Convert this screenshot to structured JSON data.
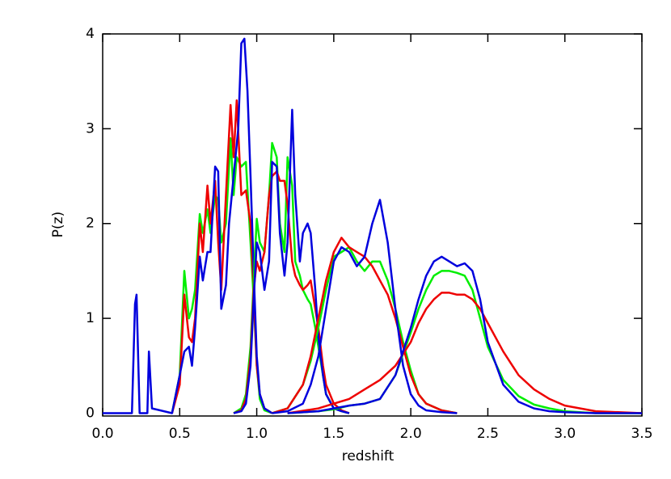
{
  "chart_data": {
    "type": "line",
    "x_label": "redshift",
    "y_label": "P(z)",
    "xlim": [
      0,
      3.5
    ],
    "ylim": [
      -0.03,
      4
    ],
    "xticks": [
      {
        "value": 0,
        "label": "0.0"
      },
      {
        "value": 0.5,
        "label": "0.5"
      },
      {
        "value": 1,
        "label": "1.0"
      },
      {
        "value": 1.5,
        "label": "1.5"
      },
      {
        "value": 2,
        "label": "2.0"
      },
      {
        "value": 2.5,
        "label": "2.5"
      },
      {
        "value": 3,
        "label": "3.0"
      },
      {
        "value": 3.5,
        "label": "3.5"
      }
    ],
    "yticks": [
      0,
      1,
      2,
      3,
      4
    ],
    "series": [
      {
        "color": "#00ee00",
        "x": [
          0.45,
          0.5,
          0.53,
          0.56,
          0.58,
          0.6,
          0.63,
          0.65,
          0.68,
          0.7,
          0.73,
          0.75,
          0.77,
          0.8,
          0.83,
          0.85,
          0.87,
          0.9,
          0.93,
          0.96,
          0.98,
          1.0,
          1.02,
          1.05,
          1.1
        ],
        "values": [
          0,
          0.4,
          1.5,
          1.0,
          1.1,
          1.3,
          2.1,
          1.9,
          2.15,
          1.9,
          2.3,
          2.25,
          1.8,
          2.0,
          2.9,
          2.3,
          2.7,
          2.6,
          2.65,
          1.8,
          1.2,
          0.5,
          0.15,
          0.03,
          0
        ]
      },
      {
        "color": "#ee0000",
        "x": [
          0.45,
          0.5,
          0.53,
          0.56,
          0.58,
          0.6,
          0.63,
          0.65,
          0.68,
          0.7,
          0.73,
          0.75,
          0.77,
          0.8,
          0.83,
          0.85,
          0.87,
          0.9,
          0.93,
          0.96,
          0.98,
          1.0,
          1.02,
          1.05,
          1.1
        ],
        "values": [
          0,
          0.3,
          1.25,
          0.8,
          0.75,
          1.0,
          2.0,
          1.7,
          2.4,
          2.0,
          2.45,
          1.8,
          1.3,
          2.3,
          3.25,
          2.7,
          3.3,
          2.3,
          2.35,
          2.0,
          1.3,
          0.5,
          0.2,
          0.05,
          0
        ]
      },
      {
        "color": "#0000dd",
        "x": [
          0.0,
          0.19,
          0.21,
          0.22,
          0.24,
          0.29,
          0.3,
          0.32,
          0.45,
          0.5,
          0.53,
          0.56,
          0.58,
          0.6,
          0.63,
          0.65,
          0.68,
          0.7,
          0.73,
          0.75,
          0.77,
          0.8,
          0.82,
          0.85,
          0.88,
          0.9,
          0.92,
          0.94,
          0.96,
          0.98,
          1.0,
          1.02,
          1.05,
          1.1
        ],
        "values": [
          0,
          0,
          1.15,
          1.25,
          0,
          0,
          0.65,
          0.05,
          0,
          0.4,
          0.65,
          0.7,
          0.5,
          0.9,
          1.65,
          1.4,
          1.7,
          1.7,
          2.6,
          2.55,
          1.1,
          1.35,
          2.0,
          2.5,
          3.0,
          3.9,
          3.95,
          3.4,
          2.5,
          1.5,
          0.6,
          0.2,
          0.05,
          0
        ]
      },
      {
        "color": "#00ee00",
        "x": [
          0.85,
          0.9,
          0.93,
          0.96,
          0.98,
          1.0,
          1.02,
          1.05,
          1.08,
          1.1,
          1.13,
          1.15,
          1.18,
          1.2,
          1.23,
          1.25,
          1.28,
          1.3,
          1.33,
          1.35,
          1.38,
          1.4,
          1.43,
          1.45,
          1.5,
          1.55,
          1.6
        ],
        "values": [
          0,
          0.05,
          0.2,
          0.7,
          1.4,
          2.05,
          1.8,
          1.7,
          2.3,
          2.85,
          2.7,
          2.0,
          1.7,
          2.7,
          2.4,
          1.6,
          1.45,
          1.3,
          1.2,
          1.15,
          0.9,
          0.7,
          0.4,
          0.2,
          0.05,
          0.02,
          0
        ]
      },
      {
        "color": "#ee0000",
        "x": [
          0.85,
          0.9,
          0.93,
          0.96,
          0.98,
          1.0,
          1.02,
          1.05,
          1.08,
          1.1,
          1.13,
          1.15,
          1.18,
          1.2,
          1.23,
          1.25,
          1.28,
          1.3,
          1.33,
          1.35,
          1.38,
          1.4,
          1.43,
          1.45,
          1.5,
          1.55,
          1.6
        ],
        "values": [
          0,
          0.03,
          0.15,
          0.6,
          1.3,
          1.6,
          1.5,
          1.7,
          2.3,
          2.5,
          2.55,
          2.45,
          2.45,
          2.2,
          1.6,
          1.45,
          1.35,
          1.3,
          1.35,
          1.4,
          1.1,
          0.9,
          0.5,
          0.3,
          0.1,
          0.03,
          0
        ]
      },
      {
        "color": "#0000dd",
        "x": [
          0.85,
          0.9,
          0.93,
          0.96,
          0.98,
          1.0,
          1.02,
          1.05,
          1.08,
          1.1,
          1.13,
          1.15,
          1.18,
          1.2,
          1.23,
          1.25,
          1.28,
          1.3,
          1.33,
          1.35,
          1.38,
          1.4,
          1.43,
          1.45,
          1.5,
          1.55,
          1.6
        ],
        "values": [
          0,
          0.02,
          0.1,
          0.5,
          1.2,
          1.8,
          1.7,
          1.3,
          1.6,
          2.65,
          2.6,
          1.9,
          1.45,
          1.8,
          3.2,
          2.3,
          1.6,
          1.9,
          2.0,
          1.9,
          1.3,
          0.8,
          0.4,
          0.2,
          0.05,
          0.02,
          0
        ]
      },
      {
        "color": "#00ee00",
        "x": [
          1.1,
          1.2,
          1.3,
          1.35,
          1.4,
          1.45,
          1.5,
          1.55,
          1.6,
          1.65,
          1.7,
          1.75,
          1.8,
          1.85,
          1.9,
          1.95,
          2.0,
          2.05,
          2.1,
          2.2,
          2.3
        ],
        "values": [
          0,
          0.05,
          0.3,
          0.55,
          0.9,
          1.3,
          1.65,
          1.7,
          1.75,
          1.6,
          1.5,
          1.6,
          1.6,
          1.4,
          1.1,
          0.75,
          0.45,
          0.2,
          0.1,
          0.03,
          0
        ]
      },
      {
        "color": "#ee0000",
        "x": [
          1.1,
          1.2,
          1.3,
          1.35,
          1.4,
          1.45,
          1.5,
          1.55,
          1.6,
          1.65,
          1.7,
          1.75,
          1.8,
          1.85,
          1.9,
          1.95,
          2.0,
          2.05,
          2.1,
          2.2,
          2.3
        ],
        "values": [
          0,
          0.05,
          0.3,
          0.6,
          1.0,
          1.4,
          1.7,
          1.85,
          1.75,
          1.7,
          1.65,
          1.55,
          1.4,
          1.25,
          1.0,
          0.7,
          0.4,
          0.2,
          0.1,
          0.03,
          0
        ]
      },
      {
        "color": "#0000dd",
        "x": [
          1.1,
          1.2,
          1.3,
          1.35,
          1.4,
          1.45,
          1.5,
          1.55,
          1.6,
          1.65,
          1.7,
          1.75,
          1.8,
          1.85,
          1.9,
          1.95,
          2.0,
          2.05,
          2.1,
          2.2,
          2.3
        ],
        "values": [
          0,
          0.02,
          0.1,
          0.3,
          0.6,
          1.1,
          1.6,
          1.75,
          1.7,
          1.55,
          1.65,
          2.0,
          2.25,
          1.8,
          1.1,
          0.5,
          0.2,
          0.08,
          0.03,
          0.01,
          0
        ]
      },
      {
        "color": "#00ee00",
        "x": [
          1.2,
          1.4,
          1.5,
          1.6,
          1.7,
          1.8,
          1.9,
          2.0,
          2.05,
          2.1,
          2.15,
          2.2,
          2.25,
          2.3,
          2.35,
          2.4,
          2.45,
          2.5,
          2.6,
          2.7,
          2.8,
          2.9,
          3.0,
          3.2,
          3.5
        ],
        "values": [
          0,
          0.02,
          0.04,
          0.08,
          0.1,
          0.15,
          0.4,
          0.85,
          1.1,
          1.3,
          1.45,
          1.5,
          1.5,
          1.48,
          1.45,
          1.3,
          1.0,
          0.7,
          0.35,
          0.18,
          0.09,
          0.05,
          0.02,
          0,
          0
        ]
      },
      {
        "color": "#ee0000",
        "x": [
          1.2,
          1.4,
          1.5,
          1.6,
          1.7,
          1.8,
          1.9,
          2.0,
          2.05,
          2.1,
          2.15,
          2.2,
          2.25,
          2.3,
          2.35,
          2.4,
          2.45,
          2.5,
          2.6,
          2.7,
          2.8,
          2.9,
          3.0,
          3.2,
          3.5
        ],
        "values": [
          0,
          0.05,
          0.1,
          0.15,
          0.25,
          0.35,
          0.5,
          0.75,
          0.95,
          1.1,
          1.2,
          1.27,
          1.27,
          1.25,
          1.25,
          1.2,
          1.1,
          0.95,
          0.65,
          0.4,
          0.25,
          0.15,
          0.08,
          0.02,
          0
        ]
      },
      {
        "color": "#0000dd",
        "x": [
          1.2,
          1.4,
          1.5,
          1.6,
          1.7,
          1.8,
          1.9,
          2.0,
          2.05,
          2.1,
          2.15,
          2.2,
          2.25,
          2.3,
          2.35,
          2.4,
          2.45,
          2.5,
          2.6,
          2.7,
          2.8,
          2.9,
          3.0,
          3.2,
          3.5
        ],
        "values": [
          0,
          0.02,
          0.05,
          0.08,
          0.1,
          0.15,
          0.4,
          0.9,
          1.2,
          1.45,
          1.6,
          1.65,
          1.6,
          1.55,
          1.58,
          1.5,
          1.2,
          0.75,
          0.3,
          0.12,
          0.05,
          0.02,
          0.01,
          0,
          0
        ]
      }
    ]
  }
}
